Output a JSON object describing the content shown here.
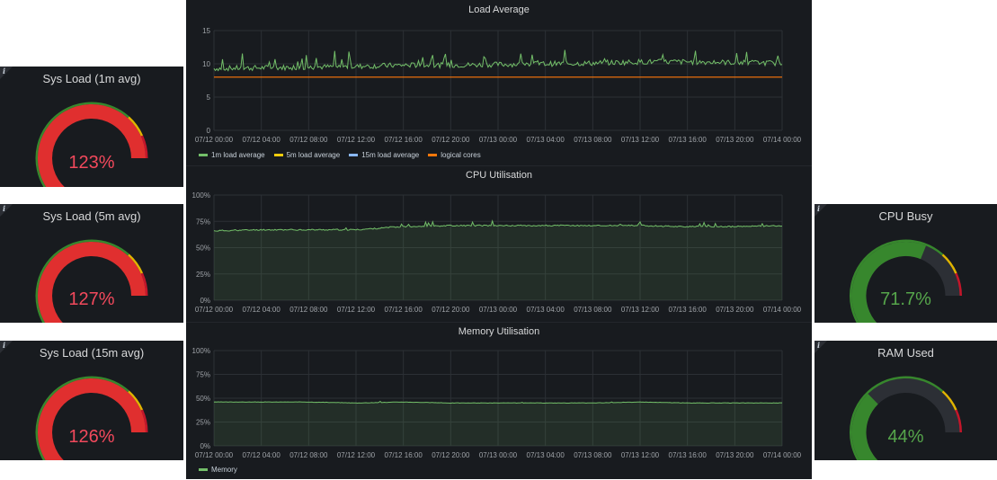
{
  "gauges": [
    {
      "id": "sys-load-1m",
      "title": "Sys Load (1m avg)",
      "value_text": "123%",
      "fraction": 1.0,
      "value_color": "#f2495c",
      "arc_color": "#e02f2f"
    },
    {
      "id": "sys-load-5m",
      "title": "Sys Load (5m avg)",
      "value_text": "127%",
      "fraction": 1.0,
      "value_color": "#f2495c",
      "arc_color": "#e02f2f"
    },
    {
      "id": "sys-load-15m",
      "title": "Sys Load (15m avg)",
      "value_text": "126%",
      "fraction": 1.0,
      "value_color": "#f2495c",
      "arc_color": "#e02f2f"
    },
    {
      "id": "cpu-busy",
      "title": "CPU Busy",
      "value_text": "71.7%",
      "fraction": 0.717,
      "value_color": "#56a64b",
      "arc_color": "#37872d"
    },
    {
      "id": "ram-used",
      "title": "RAM Used",
      "value_text": "44%",
      "fraction": 0.44,
      "value_color": "#56a64b",
      "arc_color": "#37872d"
    }
  ],
  "charts": {
    "load": {
      "title": "Load Average",
      "y_ticks": [
        "15",
        "10",
        "5",
        "0"
      ],
      "x_ticks": [
        "07/12 00:00",
        "07/12 04:00",
        "07/12 08:00",
        "07/12 12:00",
        "07/12 16:00",
        "07/12 20:00",
        "07/13 00:00",
        "07/13 04:00",
        "07/13 08:00",
        "07/13 12:00",
        "07/13 16:00",
        "07/13 20:00",
        "07/14 00:00"
      ],
      "legend": [
        {
          "label": "1m load average",
          "color": "#73bf69"
        },
        {
          "label": "5m load average",
          "color": "#f2cc0c"
        },
        {
          "label": "15m load average",
          "color": "#8ab8ff"
        },
        {
          "label": "logical cores",
          "color": "#ff780a"
        }
      ]
    },
    "cpu": {
      "title": "CPU Utilisation",
      "y_ticks": [
        "100%",
        "75%",
        "50%",
        "25%",
        "0%"
      ],
      "x_ticks": [
        "07/12 00:00",
        "07/12 04:00",
        "07/12 08:00",
        "07/12 12:00",
        "07/12 16:00",
        "07/12 20:00",
        "07/13 00:00",
        "07/13 04:00",
        "07/13 08:00",
        "07/13 12:00",
        "07/13 16:00",
        "07/13 20:00",
        "07/14 00:00"
      ]
    },
    "mem": {
      "title": "Memory Utilisation",
      "y_ticks": [
        "100%",
        "75%",
        "50%",
        "25%",
        "0%"
      ],
      "x_ticks": [
        "07/12 00:00",
        "07/12 04:00",
        "07/12 08:00",
        "07/12 12:00",
        "07/12 16:00",
        "07/12 20:00",
        "07/13 00:00",
        "07/13 04:00",
        "07/13 08:00",
        "07/13 12:00",
        "07/13 16:00",
        "07/13 20:00",
        "07/14 00:00"
      ],
      "legend": [
        {
          "label": "Memory",
          "color": "#73bf69"
        }
      ]
    }
  },
  "chart_data": [
    {
      "type": "line",
      "title": "Load Average",
      "x": [
        "07/12 00:00",
        "07/12 04:00",
        "07/12 08:00",
        "07/12 12:00",
        "07/12 16:00",
        "07/12 20:00",
        "07/13 00:00",
        "07/13 04:00",
        "07/13 08:00",
        "07/13 12:00",
        "07/13 16:00",
        "07/13 20:00",
        "07/14 00:00"
      ],
      "series": [
        {
          "name": "1m load average",
          "values": [
            9.3,
            9.4,
            9.5,
            9.6,
            9.8,
            9.8,
            9.9,
            10.0,
            10.1,
            10.3,
            10.3,
            10.2,
            10.1
          ]
        },
        {
          "name": "logical cores",
          "values": [
            8,
            8,
            8,
            8,
            8,
            8,
            8,
            8,
            8,
            8,
            8,
            8,
            8
          ]
        }
      ],
      "ylim": [
        0,
        15
      ]
    },
    {
      "type": "area",
      "title": "CPU Utilisation",
      "x": [
        "07/12 00:00",
        "07/12 04:00",
        "07/12 08:00",
        "07/12 12:00",
        "07/12 16:00",
        "07/12 20:00",
        "07/13 00:00",
        "07/13 04:00",
        "07/13 08:00",
        "07/13 12:00",
        "07/13 16:00",
        "07/13 20:00",
        "07/14 00:00"
      ],
      "series": [
        {
          "name": "CPU",
          "values": [
            66,
            67,
            67,
            67,
            70,
            71,
            71,
            71,
            71,
            71,
            70,
            70,
            71
          ]
        }
      ],
      "ylim": [
        0,
        100
      ]
    },
    {
      "type": "area",
      "title": "Memory Utilisation",
      "x": [
        "07/12 00:00",
        "07/12 04:00",
        "07/12 08:00",
        "07/12 12:00",
        "07/12 16:00",
        "07/12 20:00",
        "07/13 00:00",
        "07/13 04:00",
        "07/13 08:00",
        "07/13 12:00",
        "07/13 16:00",
        "07/13 20:00",
        "07/14 00:00"
      ],
      "series": [
        {
          "name": "Memory",
          "values": [
            46,
            46,
            46,
            45,
            46,
            45,
            45,
            45,
            45,
            46,
            45,
            45,
            45
          ]
        }
      ],
      "ylim": [
        0,
        100
      ]
    }
  ]
}
